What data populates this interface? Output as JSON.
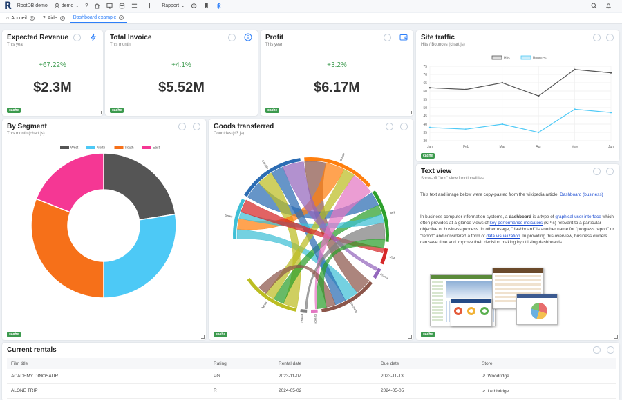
{
  "topbar": {
    "app_name": "RootDB demo",
    "user": "demo",
    "report_menu": "Rapport"
  },
  "tabs": [
    {
      "label": "Accueil"
    },
    {
      "label": "Aide"
    },
    {
      "label": "Dashboard example",
      "active": true
    }
  ],
  "kpis": [
    {
      "title": "Expected Revenue",
      "subtitle": "This year",
      "change": "+67.22%",
      "value": "$2.3M"
    },
    {
      "title": "Total Invoice",
      "subtitle": "This month",
      "change": "+4.1%",
      "value": "$5.52M"
    },
    {
      "title": "Profit",
      "subtitle": "This year",
      "change": "+3.2%",
      "value": "$6.17M"
    }
  ],
  "cache_label": "cache",
  "site_traffic": {
    "title": "Site traffic",
    "subtitle": "Hits / Bounces (chart.js)",
    "chart_data": {
      "type": "line",
      "x": [
        "Jan",
        "Feb",
        "Mar",
        "Apr",
        "May",
        "Jun"
      ],
      "series": [
        {
          "name": "Hits",
          "values": [
            62,
            61,
            65,
            57,
            73,
            71
          ],
          "color": "#555555"
        },
        {
          "name": "Bounces",
          "values": [
            38,
            37,
            40,
            35,
            49,
            47
          ],
          "color": "#4dc9f6"
        }
      ],
      "ylim": [
        30,
        75
      ],
      "yticks": [
        30,
        35,
        40,
        45,
        50,
        55,
        60,
        65,
        70,
        75
      ],
      "grid": true,
      "legend": "top"
    }
  },
  "segment": {
    "title": "By Segment",
    "subtitle": "This month (chart.js)",
    "chart_data": {
      "type": "pie",
      "categories": [
        "West",
        "North",
        "South",
        "East"
      ],
      "values": [
        22.5,
        27.5,
        31,
        19
      ],
      "colors": [
        "#555555",
        "#4dc9f6",
        "#f67019",
        "#f53794"
      ],
      "legend": "top"
    }
  },
  "goods": {
    "title": "Goods transferred",
    "subtitle": "Countries (d3.js)",
    "countries": [
      "Spain",
      "Canada",
      "Britain",
      "Italy",
      "USA",
      "France",
      "Germany",
      "Greece",
      "Ireland",
      "Japan"
    ]
  },
  "text_view": {
    "title": "Text view",
    "subtitle": "Show-off \"text\" view functionalities.",
    "intro": "This text and image below were copy-pasted from the wikipedia article: ",
    "intro_link": "Dashboard (business)",
    "p_a": "In business computer information systems, a ",
    "p_b": "dashboard",
    "p_c": " is a type of ",
    "p_link1": "graphical user interface",
    "p_d": " which often provides at-a-glance views of ",
    "p_link2": "key performance indicators",
    "p_e": " (KPIs) relevant to a particular objective or business process. In other usage, \"dashboard\" is another name for \"progress report\" or \"report\" and considered a form of ",
    "p_link3": "data visualization",
    "p_f": ". In providing this overview, business owners can save time and improve their decision making by utilizing dashboards."
  },
  "rentals": {
    "title": "Current rentals",
    "columns": [
      "Film title",
      "Rating",
      "Rental date",
      "Due date",
      "Store"
    ],
    "rows": [
      [
        "ACADEMY DINOSAUR",
        "PG",
        "2023-11-07",
        "2023-11-13",
        "Woodridge"
      ],
      [
        "ALONE TRIP",
        "R",
        "2024-05-02",
        "2024-05-05",
        "Lethbridge"
      ]
    ]
  }
}
